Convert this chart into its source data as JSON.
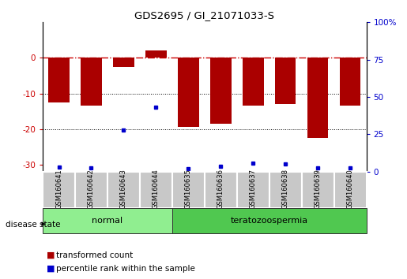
{
  "title": "GDS2695 / GI_21071033-S",
  "samples": [
    "GSM160641",
    "GSM160642",
    "GSM160643",
    "GSM160644",
    "GSM160635",
    "GSM160636",
    "GSM160637",
    "GSM160638",
    "GSM160639",
    "GSM160640"
  ],
  "transformed_counts": [
    -12.5,
    -13.5,
    -2.5,
    2.0,
    -19.5,
    -18.5,
    -13.5,
    -13.0,
    -22.5,
    -13.5
  ],
  "percentile_ranks": [
    3.0,
    2.5,
    28.0,
    43.0,
    2.0,
    3.5,
    5.5,
    5.0,
    2.5,
    2.5
  ],
  "group_labels": [
    "normal",
    "teratozoospermia"
  ],
  "group_sizes": [
    4,
    6
  ],
  "group_colors": [
    "#90ee90",
    "#50c850"
  ],
  "sample_box_color": "#c8c8c8",
  "bar_color": "#aa0000",
  "dot_color": "#0000cc",
  "dashed_line_color": "#cc0000",
  "ylim_left": [
    -32,
    10
  ],
  "ylim_right": [
    0,
    100
  ],
  "legend_transformed": "transformed count",
  "legend_percentile": "percentile rank within the sample",
  "disease_state_label": "disease state"
}
